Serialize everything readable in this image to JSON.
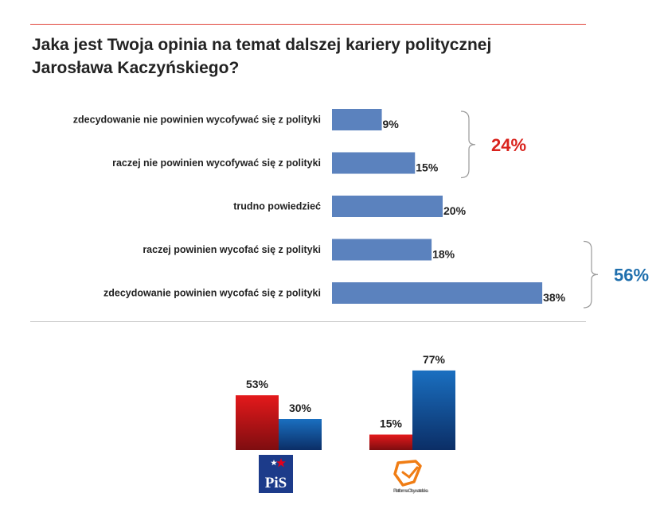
{
  "title": {
    "line1": "Jaka jest Twoja opinia na temat dalszej kariery politycznej",
    "line2": "Jarosława Kaczyńskiego?"
  },
  "chart_data": [
    {
      "type": "bar",
      "orientation": "horizontal",
      "title": "Jaka jest Twoja opinia na temat dalszej kariery politycznej Jarosława Kaczyńskiego?",
      "categories": [
        "zdecydowanie nie powinien wycofywać się z polityki",
        "raczej nie powinien wycofywać się z polityki",
        "trudno powiedzieć",
        "raczej powinien wycofać się z polityki",
        "zdecydowanie powinien wycofać się z polityki"
      ],
      "values": [
        9,
        15,
        20,
        18,
        38
      ],
      "value_labels": [
        "9%",
        "15%",
        "20%",
        "18%",
        "38%"
      ],
      "color": "#5b82be",
      "annotations": [
        {
          "label": "24%",
          "covers": [
            0,
            1
          ],
          "color": "#d9231d"
        },
        {
          "label": "56%",
          "covers": [
            3,
            4
          ],
          "color": "#1f6fad"
        }
      ]
    },
    {
      "type": "bar",
      "orientation": "vertical",
      "groups": [
        "PiS",
        "Platforma Obywatelska"
      ],
      "series": [
        {
          "values": [
            53,
            15
          ],
          "labels": [
            "53%",
            "15%"
          ],
          "color": "#d91a1a"
        },
        {
          "values": [
            30,
            77
          ],
          "labels": [
            "30%",
            "77%"
          ],
          "color": "#1565b0"
        }
      ],
      "ylim": [
        0,
        77
      ]
    }
  ],
  "logos": {
    "pis": {
      "text": "PiS",
      "bg": "#1c3b8a"
    },
    "po": {
      "text": "Platforma Obywatelska",
      "color": "#f07d14"
    }
  }
}
